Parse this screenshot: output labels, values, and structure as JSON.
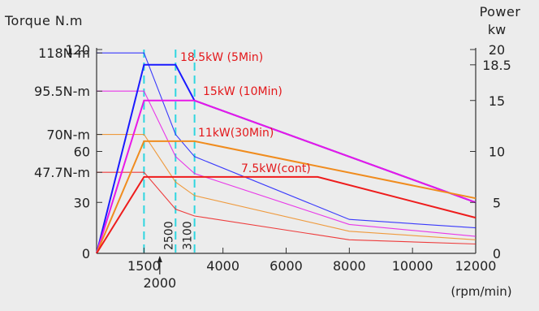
{
  "chart_data": {
    "type": "line",
    "title": "",
    "left_axis_title": "Torque N.m",
    "right_axis_title": "Power",
    "right_axis_unit": "kw",
    "x_unit_label": "(rpm/min)",
    "xlim": [
      0,
      12000
    ],
    "x_ticks": [
      {
        "value": 1500,
        "label": "1500"
      },
      {
        "value": 4000,
        "label": "4000"
      },
      {
        "value": 6000,
        "label": "6000"
      },
      {
        "value": 8000,
        "label": "8000"
      },
      {
        "value": 10000,
        "label": "10000"
      },
      {
        "value": 12000,
        "label": "12000"
      }
    ],
    "x_markers": [
      {
        "value": 2000,
        "label": "2000"
      },
      {
        "value": 2500,
        "label": "2500"
      },
      {
        "value": 3100,
        "label": "3100"
      }
    ],
    "left_ylim": [
      0,
      120
    ],
    "left_ticks": [
      {
        "value": 120,
        "label": "120"
      },
      {
        "value": 118,
        "label": "118N-m"
      },
      {
        "value": 95.5,
        "label": "95.5N-m"
      },
      {
        "value": 70,
        "label": "70N-m"
      },
      {
        "value": 60,
        "label": "60"
      },
      {
        "value": 47.7,
        "label": "47.7N-m"
      },
      {
        "value": 30,
        "label": "30"
      },
      {
        "value": 0,
        "label": "0"
      }
    ],
    "right_ylim": [
      0,
      20
    ],
    "right_ticks": [
      {
        "value": 20,
        "label": "20"
      },
      {
        "value": 18.5,
        "label": "18.5"
      },
      {
        "value": 15,
        "label": "15"
      },
      {
        "value": 10,
        "label": "10"
      },
      {
        "value": 5,
        "label": "5"
      },
      {
        "value": 0,
        "label": "0"
      }
    ],
    "base_speed_lines": [
      1500,
      2500,
      3100
    ],
    "series": [
      {
        "name": "18.5kW (5Min)",
        "color": "#1a1aff",
        "power": [
          [
            0,
            0
          ],
          [
            1500,
            18.5
          ],
          [
            2500,
            18.5
          ],
          [
            3100,
            15
          ],
          [
            12000,
            5
          ]
        ],
        "torque": [
          [
            0,
            118
          ],
          [
            1500,
            118
          ],
          [
            2500,
            70
          ],
          [
            3100,
            57
          ],
          [
            8000,
            20
          ],
          [
            12000,
            15
          ]
        ]
      },
      {
        "name": "15kW (10Min)",
        "color": "#e818e8",
        "power": [
          [
            0,
            0
          ],
          [
            1500,
            15
          ],
          [
            3100,
            15
          ],
          [
            12000,
            5
          ]
        ],
        "torque": [
          [
            0,
            95.5
          ],
          [
            1500,
            95.5
          ],
          [
            2500,
            57
          ],
          [
            3100,
            47
          ],
          [
            8000,
            17
          ],
          [
            12000,
            10
          ]
        ]
      },
      {
        "name": "11kW(30Min)",
        "color": "#f08c1e",
        "power": [
          [
            0,
            0
          ],
          [
            1500,
            11
          ],
          [
            3100,
            11
          ],
          [
            12000,
            5.4
          ]
        ],
        "torque": [
          [
            0,
            70
          ],
          [
            1500,
            70
          ],
          [
            2500,
            42
          ],
          [
            3100,
            34
          ],
          [
            8000,
            13
          ],
          [
            12000,
            8
          ]
        ]
      },
      {
        "name": "7.5kW(cont)",
        "color": "#ee1c1c",
        "power": [
          [
            0,
            0
          ],
          [
            1500,
            7.5
          ],
          [
            7000,
            7.5
          ],
          [
            12000,
            3.5
          ]
        ],
        "torque": [
          [
            0,
            47.7
          ],
          [
            1500,
            47.7
          ],
          [
            2500,
            26
          ],
          [
            3100,
            22
          ],
          [
            8000,
            8
          ],
          [
            12000,
            5.5
          ]
        ]
      }
    ]
  }
}
